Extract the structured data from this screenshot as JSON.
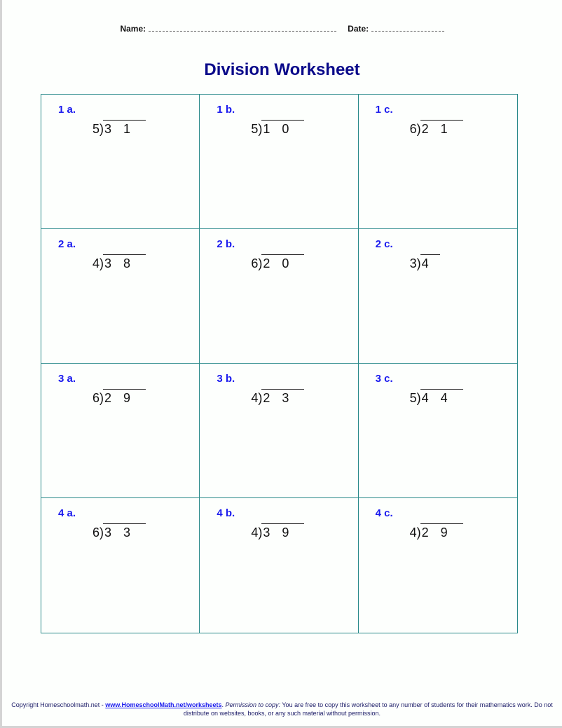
{
  "header": {
    "name_label": "Name:",
    "date_label": "Date:"
  },
  "title": "Division Worksheet",
  "problems": [
    {
      "label": "1 a.",
      "divisor": "5)",
      "dividend": "3 1"
    },
    {
      "label": "1 b.",
      "divisor": "5)",
      "dividend": "1 0"
    },
    {
      "label": "1 c.",
      "divisor": "6)",
      "dividend": "2 1"
    },
    {
      "label": "2 a.",
      "divisor": "4)",
      "dividend": "3 8"
    },
    {
      "label": "2 b.",
      "divisor": "6)",
      "dividend": "2 0"
    },
    {
      "label": "2 c.",
      "divisor": "3)",
      "dividend": "4"
    },
    {
      "label": "3 a.",
      "divisor": "6)",
      "dividend": "2 9"
    },
    {
      "label": "3 b.",
      "divisor": "4)",
      "dividend": "2 3"
    },
    {
      "label": "3 c.",
      "divisor": "5)",
      "dividend": "4 4"
    },
    {
      "label": "4 a.",
      "divisor": "6)",
      "dividend": "3 3"
    },
    {
      "label": "4 b.",
      "divisor": "4)",
      "dividend": "3 9"
    },
    {
      "label": "4 c.",
      "divisor": "4)",
      "dividend": "2 9"
    }
  ],
  "footer": {
    "copyright": "Copyright Homeschoolmath.net - ",
    "link": "www.HomeschoolMath.net/worksheets",
    "sep": ". ",
    "permission_label": "Permission to copy:",
    "permission_text": " You are free to copy this worksheet to any number of students for their mathematics work. Do not distribute on websites, books, or any such material without permission."
  }
}
